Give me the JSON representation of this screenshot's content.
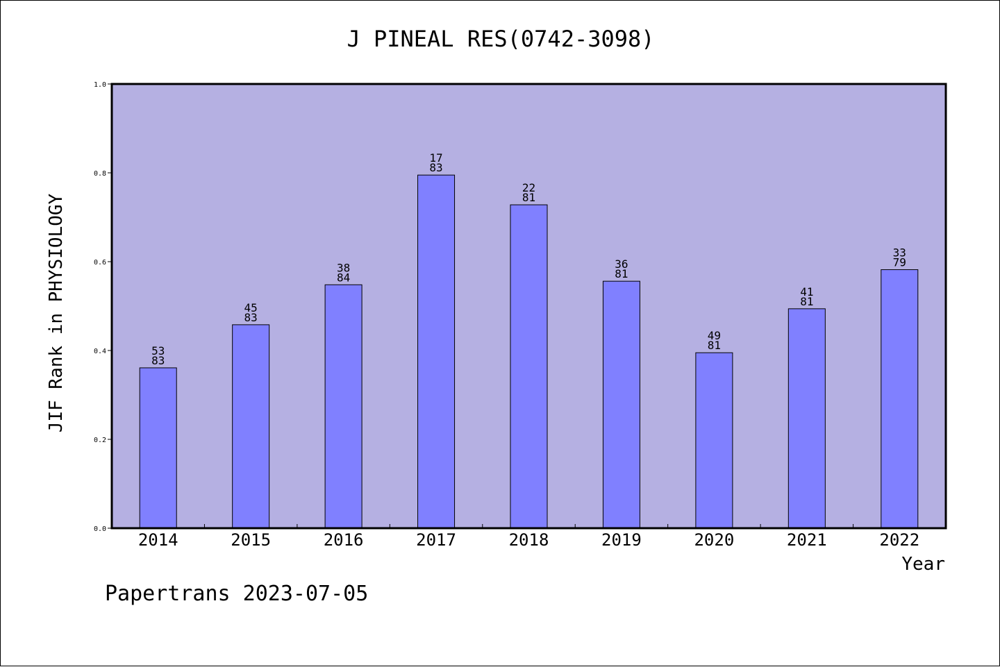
{
  "chart_data": {
    "type": "bar",
    "title": "J PINEAL RES(0742-3098)",
    "xlabel": "Year",
    "ylabel": "JIF Rank in PHYSIOLOGY",
    "ylim": [
      0,
      1.0
    ],
    "yticks": [
      "0.0",
      "0.2",
      "0.4",
      "0.6",
      "0.8",
      "1.0"
    ],
    "categories": [
      "2014",
      "2015",
      "2016",
      "2017",
      "2018",
      "2019",
      "2020",
      "2021",
      "2022"
    ],
    "values": [
      0.361,
      0.458,
      0.548,
      0.795,
      0.728,
      0.556,
      0.395,
      0.494,
      0.582
    ],
    "rank_labels": [
      {
        "rank": "53",
        "total": "83"
      },
      {
        "rank": "45",
        "total": "83"
      },
      {
        "rank": "38",
        "total": "84"
      },
      {
        "rank": "17",
        "total": "83"
      },
      {
        "rank": "22",
        "total": "81"
      },
      {
        "rank": "36",
        "total": "81"
      },
      {
        "rank": "49",
        "total": "81"
      },
      {
        "rank": "41",
        "total": "81"
      },
      {
        "rank": "33",
        "total": "79"
      }
    ],
    "grid": false,
    "colors": {
      "plot_background": "#b5b0e2",
      "bar_fill": "#8080ff",
      "bar_stroke": "#000000"
    }
  },
  "footer": "Papertrans 2023-07-05"
}
